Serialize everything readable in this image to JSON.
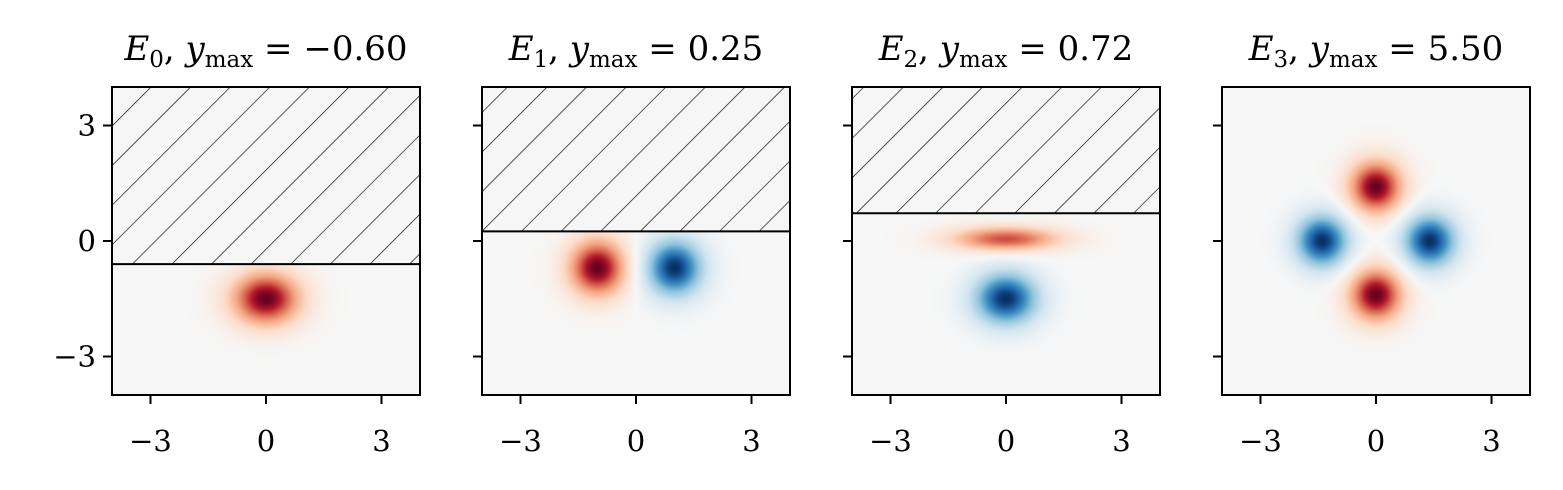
{
  "chart_data": [
    {
      "type": "heatmap",
      "title": "E₀, yₘₐₓ = −0.60",
      "title_parts": {
        "main": "E",
        "sub": "0",
        "var": ", y",
        "var_sub": "max",
        "rest": " = −0.60"
      },
      "y_max": -0.6,
      "xlim": [
        -4,
        4
      ],
      "ylim": [
        -4,
        4
      ],
      "xticks": [
        -3,
        0,
        3
      ],
      "xtick_labels": [
        "−3",
        "0",
        "3"
      ],
      "yticks": [
        -3,
        0,
        3
      ],
      "ytick_labels": [
        "−3",
        "0",
        "3"
      ],
      "forbidden_region": "hatched above y_max",
      "colormap": "RdBu_r",
      "lobes": [
        {
          "x": 0,
          "y": -1.5,
          "sign": 1,
          "sx": 0.9,
          "sy": 0.7
        }
      ]
    },
    {
      "type": "heatmap",
      "title": "E₁, yₘₐₓ = 0.25",
      "title_parts": {
        "main": "E",
        "sub": "1",
        "var": ", y",
        "var_sub": "max",
        "rest": " = 0.25"
      },
      "y_max": 0.25,
      "xlim": [
        -4,
        4
      ],
      "ylim": [
        -4,
        4
      ],
      "xticks": [
        -3,
        0,
        3
      ],
      "xtick_labels": [
        "−3",
        "0",
        "3"
      ],
      "yticks": [
        -3,
        0,
        3
      ],
      "ytick_labels": [
        "",
        "",
        ""
      ],
      "forbidden_region": "hatched above y_max",
      "colormap": "RdBu_r",
      "lobes": [
        {
          "x": -1.0,
          "y": -0.7,
          "sign": 1,
          "sx": 0.75,
          "sy": 0.75
        },
        {
          "x": 1.0,
          "y": -0.7,
          "sign": -1,
          "sx": 0.75,
          "sy": 0.75
        }
      ]
    },
    {
      "type": "heatmap",
      "title": "E₂, yₘₐₓ = 0.72",
      "title_parts": {
        "main": "E",
        "sub": "2",
        "var": ", y",
        "var_sub": "max",
        "rest": " = 0.72"
      },
      "y_max": 0.72,
      "xlim": [
        -4,
        4
      ],
      "ylim": [
        -4,
        4
      ],
      "xticks": [
        -3,
        0,
        3
      ],
      "xtick_labels": [
        "−3",
        "0",
        "3"
      ],
      "yticks": [
        -3,
        0,
        3
      ],
      "ytick_labels": [
        "",
        "",
        ""
      ],
      "forbidden_region": "hatched above y_max",
      "colormap": "RdBu_r",
      "lobes": [
        {
          "x": 0,
          "y": 0.05,
          "sign": 0.75,
          "sx": 1.4,
          "sy": 0.32
        },
        {
          "x": 0,
          "y": -1.5,
          "sign": -1,
          "sx": 0.85,
          "sy": 0.7
        }
      ]
    },
    {
      "type": "heatmap",
      "title": "E₃, yₘₐₓ = 5.50",
      "title_parts": {
        "main": "E",
        "sub": "3",
        "var": ", y",
        "var_sub": "max",
        "rest": " = 5.50"
      },
      "y_max": 5.5,
      "xlim": [
        -4,
        4
      ],
      "ylim": [
        -4,
        4
      ],
      "xticks": [
        -3,
        0,
        3
      ],
      "xtick_labels": [
        "−3",
        "0",
        "3"
      ],
      "yticks": [
        -3,
        0,
        3
      ],
      "ytick_labels": [
        "",
        "",
        ""
      ],
      "forbidden_region": "none",
      "colormap": "RdBu_r",
      "lobes": [
        {
          "x": 0,
          "y": 1.4,
          "sign": 1,
          "sx": 0.7,
          "sy": 0.7
        },
        {
          "x": 0,
          "y": -1.4,
          "sign": 1,
          "sx": 0.7,
          "sy": 0.7
        },
        {
          "x": -1.4,
          "y": 0,
          "sign": -1,
          "sx": 0.7,
          "sy": 0.7
        },
        {
          "x": 1.4,
          "y": 0,
          "sign": -1,
          "sx": 0.7,
          "sy": 0.7
        }
      ]
    }
  ],
  "colors": {
    "positive": "#67001f",
    "negative": "#053061",
    "background": "#f5f6f5",
    "hatch": "#000000"
  }
}
